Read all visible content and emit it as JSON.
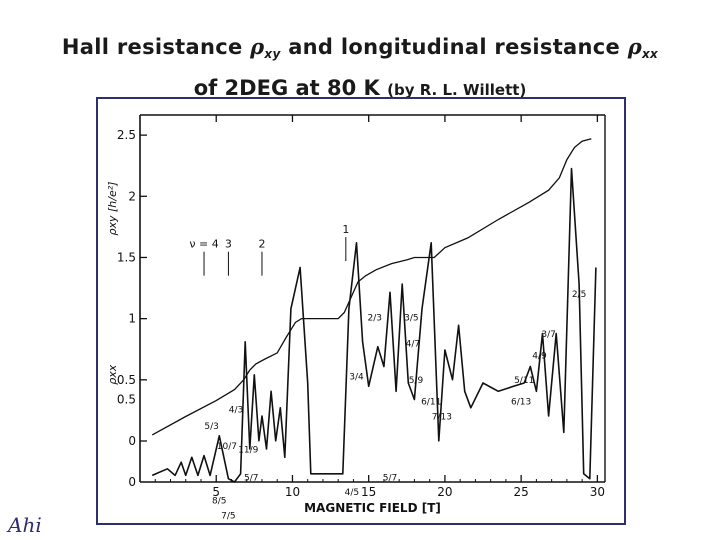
{
  "title": {
    "line1_prefix": "Hall resistance ",
    "rho": "ρ",
    "sub_xy": "xy",
    "line1_mid": " and longitudinal resistance ",
    "sub_xx": "xx",
    "line2_main": "of 2DEG at 80 K ",
    "author": "(by R. L. Willett)"
  },
  "logo_text": "Ahi",
  "chart_data": {
    "type": "line",
    "xlabel": "MAGNETIC FIELD [T]",
    "ylabel_xy": "ρxy [h/e²]",
    "ylabel_xx": "ρxx",
    "x_ticks": [
      "5",
      "10",
      "15",
      "20",
      "25",
      "30"
    ],
    "x_tick_values": [
      5,
      10,
      15,
      20,
      25,
      30
    ],
    "y_ticks": [
      "0",
      "0.5",
      "1",
      "1.5",
      "2",
      "2.5"
    ],
    "y_tick_values": [
      0,
      0.5,
      1,
      1.5,
      2,
      2.5
    ],
    "xlim": [
      0,
      30.5
    ],
    "ylim": [
      0,
      2.6
    ],
    "xx_baseline_label": "0",
    "xx_scale_tick": "0.5",
    "series": [
      {
        "id": "rho_xy",
        "points": [
          [
            0.8,
            0.05
          ],
          [
            3,
            0.2
          ],
          [
            5,
            0.33
          ],
          [
            6.2,
            0.42
          ],
          [
            6.8,
            0.5
          ],
          [
            7.2,
            0.58
          ],
          [
            7.6,
            0.63
          ],
          [
            8.2,
            0.67
          ],
          [
            9.0,
            0.72
          ],
          [
            9.6,
            0.85
          ],
          [
            10.2,
            0.97
          ],
          [
            10.6,
            1.0
          ],
          [
            13.0,
            1.0
          ],
          [
            13.4,
            1.05
          ],
          [
            14.3,
            1.3
          ],
          [
            14.8,
            1.35
          ],
          [
            15.5,
            1.4
          ],
          [
            16.5,
            1.45
          ],
          [
            17.5,
            1.48
          ],
          [
            18.0,
            1.5
          ],
          [
            19.3,
            1.5
          ],
          [
            20.0,
            1.58
          ],
          [
            21.5,
            1.66
          ],
          [
            23.5,
            1.81
          ],
          [
            25.5,
            1.95
          ],
          [
            26.8,
            2.05
          ],
          [
            27.5,
            2.15
          ],
          [
            28.0,
            2.3
          ],
          [
            28.5,
            2.4
          ],
          [
            29.0,
            2.45
          ],
          [
            29.6,
            2.47
          ]
        ]
      },
      {
        "id": "rho_xx",
        "points": [
          [
            0.8,
            0.04
          ],
          [
            1.8,
            0.08
          ],
          [
            2.3,
            0.04
          ],
          [
            2.7,
            0.12
          ],
          [
            3.0,
            0.04
          ],
          [
            3.4,
            0.15
          ],
          [
            3.8,
            0.04
          ],
          [
            4.2,
            0.16
          ],
          [
            4.6,
            0.04
          ],
          [
            5.2,
            0.28
          ],
          [
            5.8,
            0.02
          ],
          [
            6.2,
            0.0
          ],
          [
            6.6,
            0.05
          ],
          [
            6.9,
            0.85
          ],
          [
            7.2,
            0.2
          ],
          [
            7.5,
            0.65
          ],
          [
            7.8,
            0.25
          ],
          [
            8.0,
            0.4
          ],
          [
            8.3,
            0.2
          ],
          [
            8.6,
            0.55
          ],
          [
            8.9,
            0.25
          ],
          [
            9.2,
            0.45
          ],
          [
            9.5,
            0.15
          ],
          [
            9.9,
            1.05
          ],
          [
            10.5,
            1.3
          ],
          [
            11.0,
            0.6
          ],
          [
            11.2,
            0.05
          ],
          [
            13.3,
            0.05
          ],
          [
            13.7,
            1.05
          ],
          [
            14.2,
            1.45
          ],
          [
            14.6,
            0.85
          ],
          [
            15.0,
            0.58
          ],
          [
            15.6,
            0.82
          ],
          [
            16.0,
            0.7
          ],
          [
            16.4,
            1.15
          ],
          [
            16.8,
            0.55
          ],
          [
            17.2,
            1.2
          ],
          [
            17.6,
            0.6
          ],
          [
            18.0,
            0.5
          ],
          [
            18.5,
            1.05
          ],
          [
            19.1,
            1.45
          ],
          [
            19.6,
            0.25
          ],
          [
            20.0,
            0.8
          ],
          [
            20.5,
            0.62
          ],
          [
            20.9,
            0.95
          ],
          [
            21.3,
            0.55
          ],
          [
            21.7,
            0.45
          ],
          [
            22.5,
            0.6
          ],
          [
            23.5,
            0.55
          ],
          [
            24.5,
            0.58
          ],
          [
            25.2,
            0.6
          ],
          [
            25.6,
            0.7
          ],
          [
            26.0,
            0.55
          ],
          [
            26.4,
            0.9
          ],
          [
            26.8,
            0.4
          ],
          [
            27.3,
            0.9
          ],
          [
            27.8,
            0.3
          ],
          [
            28.3,
            1.9
          ],
          [
            28.8,
            1.2
          ],
          [
            29.1,
            0.05
          ],
          [
            29.5,
            0.02
          ],
          [
            29.9,
            1.3
          ]
        ]
      }
    ],
    "filling_factor_labels": [
      "ν = 4",
      "3",
      "2",
      "1"
    ],
    "fraction_labels": [
      "2/3",
      "3/5",
      "4/7",
      "5/9",
      "6/11",
      "7/13",
      "5/3",
      "4/3",
      "10/7",
      "11/9",
      "5/7",
      "8/5",
      "7/5",
      "3/4",
      "4/5",
      "5/7",
      "6/13",
      "5/11",
      "4/9",
      "3/7",
      "2/5"
    ]
  }
}
